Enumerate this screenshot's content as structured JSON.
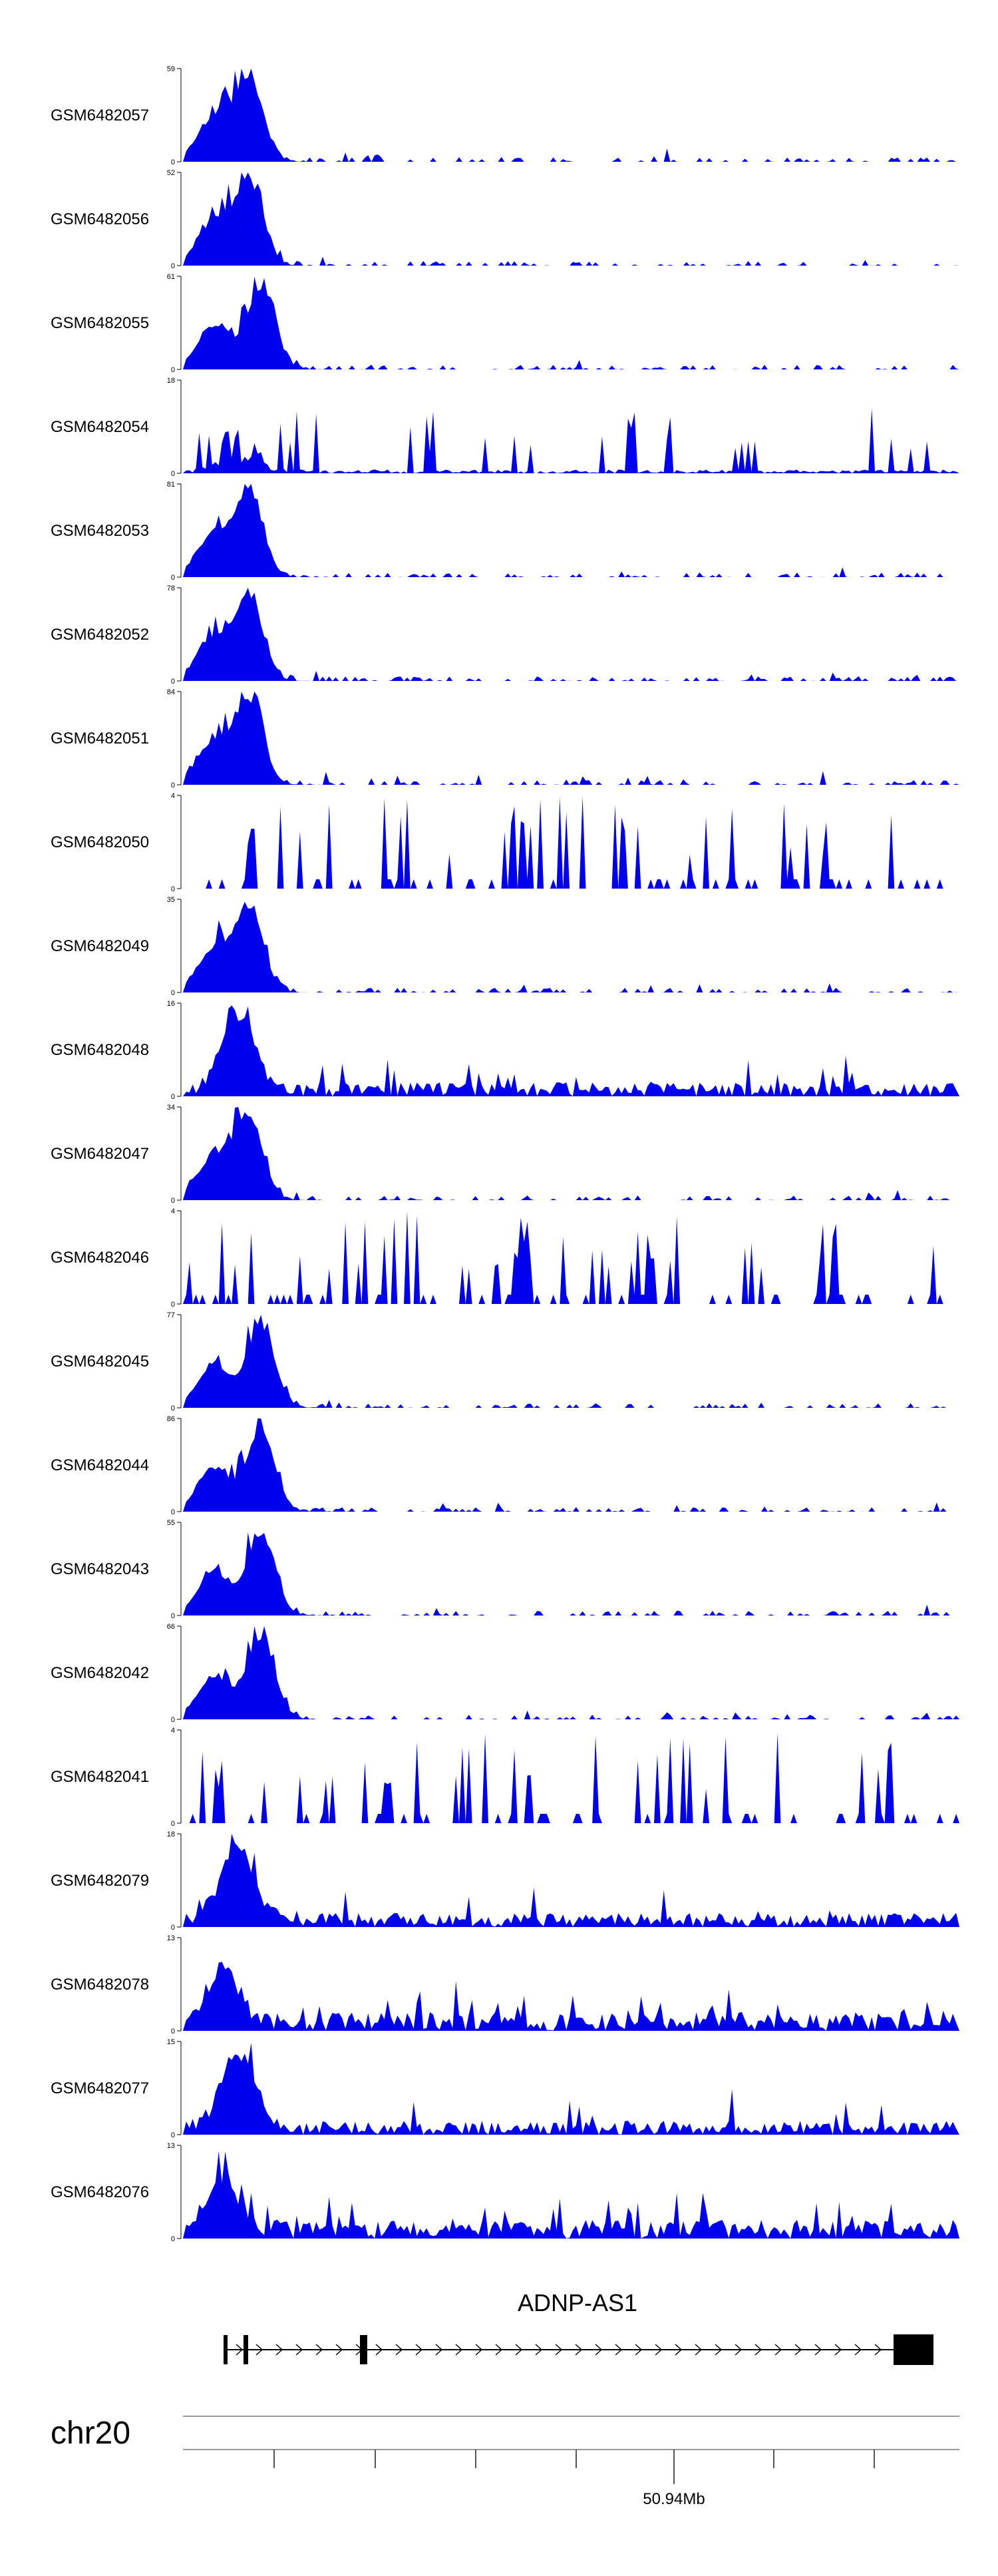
{
  "chart_data": {
    "type": "area",
    "color": "#0000ee",
    "tracks": [
      {
        "name": "GSM6482057",
        "ymax": 59,
        "profile": "peakA",
        "seed": 1
      },
      {
        "name": "GSM6482056",
        "ymax": 52,
        "profile": "peakB",
        "seed": 2
      },
      {
        "name": "GSM6482055",
        "ymax": 61,
        "profile": "peakC",
        "seed": 3
      },
      {
        "name": "GSM6482054",
        "ymax": 18,
        "profile": "spiky",
        "seed": 4
      },
      {
        "name": "GSM6482053",
        "ymax": 81,
        "profile": "peakA",
        "seed": 5
      },
      {
        "name": "GSM6482052",
        "ymax": 78,
        "profile": "peakB",
        "seed": 6
      },
      {
        "name": "GSM6482051",
        "ymax": 84,
        "profile": "peakA",
        "seed": 7
      },
      {
        "name": "GSM6482050",
        "ymax": 4,
        "profile": "sparse",
        "seed": 8
      },
      {
        "name": "GSM6482049",
        "ymax": 35,
        "profile": "peakB",
        "seed": 9
      },
      {
        "name": "GSM6482048",
        "ymax": 16,
        "profile": "noisy",
        "seed": 10
      },
      {
        "name": "GSM6482047",
        "ymax": 34,
        "profile": "peakB",
        "seed": 11
      },
      {
        "name": "GSM6482046",
        "ymax": 4,
        "profile": "sparse",
        "seed": 12
      },
      {
        "name": "GSM6482045",
        "ymax": 77,
        "profile": "peakC",
        "seed": 13
      },
      {
        "name": "GSM6482044",
        "ymax": 86,
        "profile": "peakC",
        "seed": 14
      },
      {
        "name": "GSM6482043",
        "ymax": 55,
        "profile": "peakC",
        "seed": 15
      },
      {
        "name": "GSM6482042",
        "ymax": 66,
        "profile": "peakC",
        "seed": 16
      },
      {
        "name": "GSM6482041",
        "ymax": 4,
        "profile": "sparse",
        "seed": 17
      },
      {
        "name": "GSM6482079",
        "ymax": 18,
        "profile": "noisy",
        "seed": 18
      },
      {
        "name": "GSM6482078",
        "ymax": 13,
        "profile": "dense",
        "seed": 19
      },
      {
        "name": "GSM6482077",
        "ymax": 15,
        "profile": "noisy",
        "seed": 20
      },
      {
        "name": "GSM6482076",
        "ymax": 13,
        "profile": "dense",
        "seed": 21
      }
    ],
    "yticks": [
      "max",
      "0"
    ],
    "gene": {
      "name": "ADNP-AS1",
      "strand": "+"
    },
    "chromosome": "chr20",
    "position_label": "50.94Mb"
  }
}
